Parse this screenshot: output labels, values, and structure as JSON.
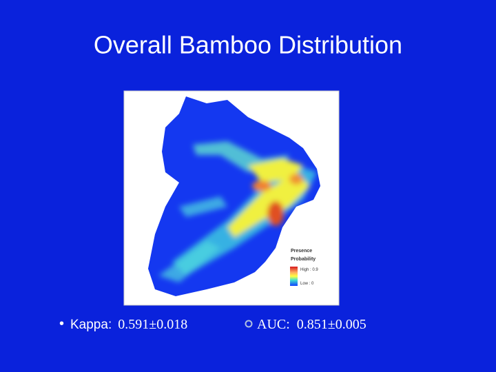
{
  "title": "Overall Bamboo Distribution",
  "map": {
    "legend": {
      "title": [
        "Presence",
        "Probability"
      ],
      "high": "High : 0.9",
      "low": "Low : 0"
    }
  },
  "bullets": [
    {
      "label": "Kappa:",
      "value": "0.591±0.018"
    },
    {
      "label": "AUC:",
      "value": "0.851±0.005"
    }
  ]
}
